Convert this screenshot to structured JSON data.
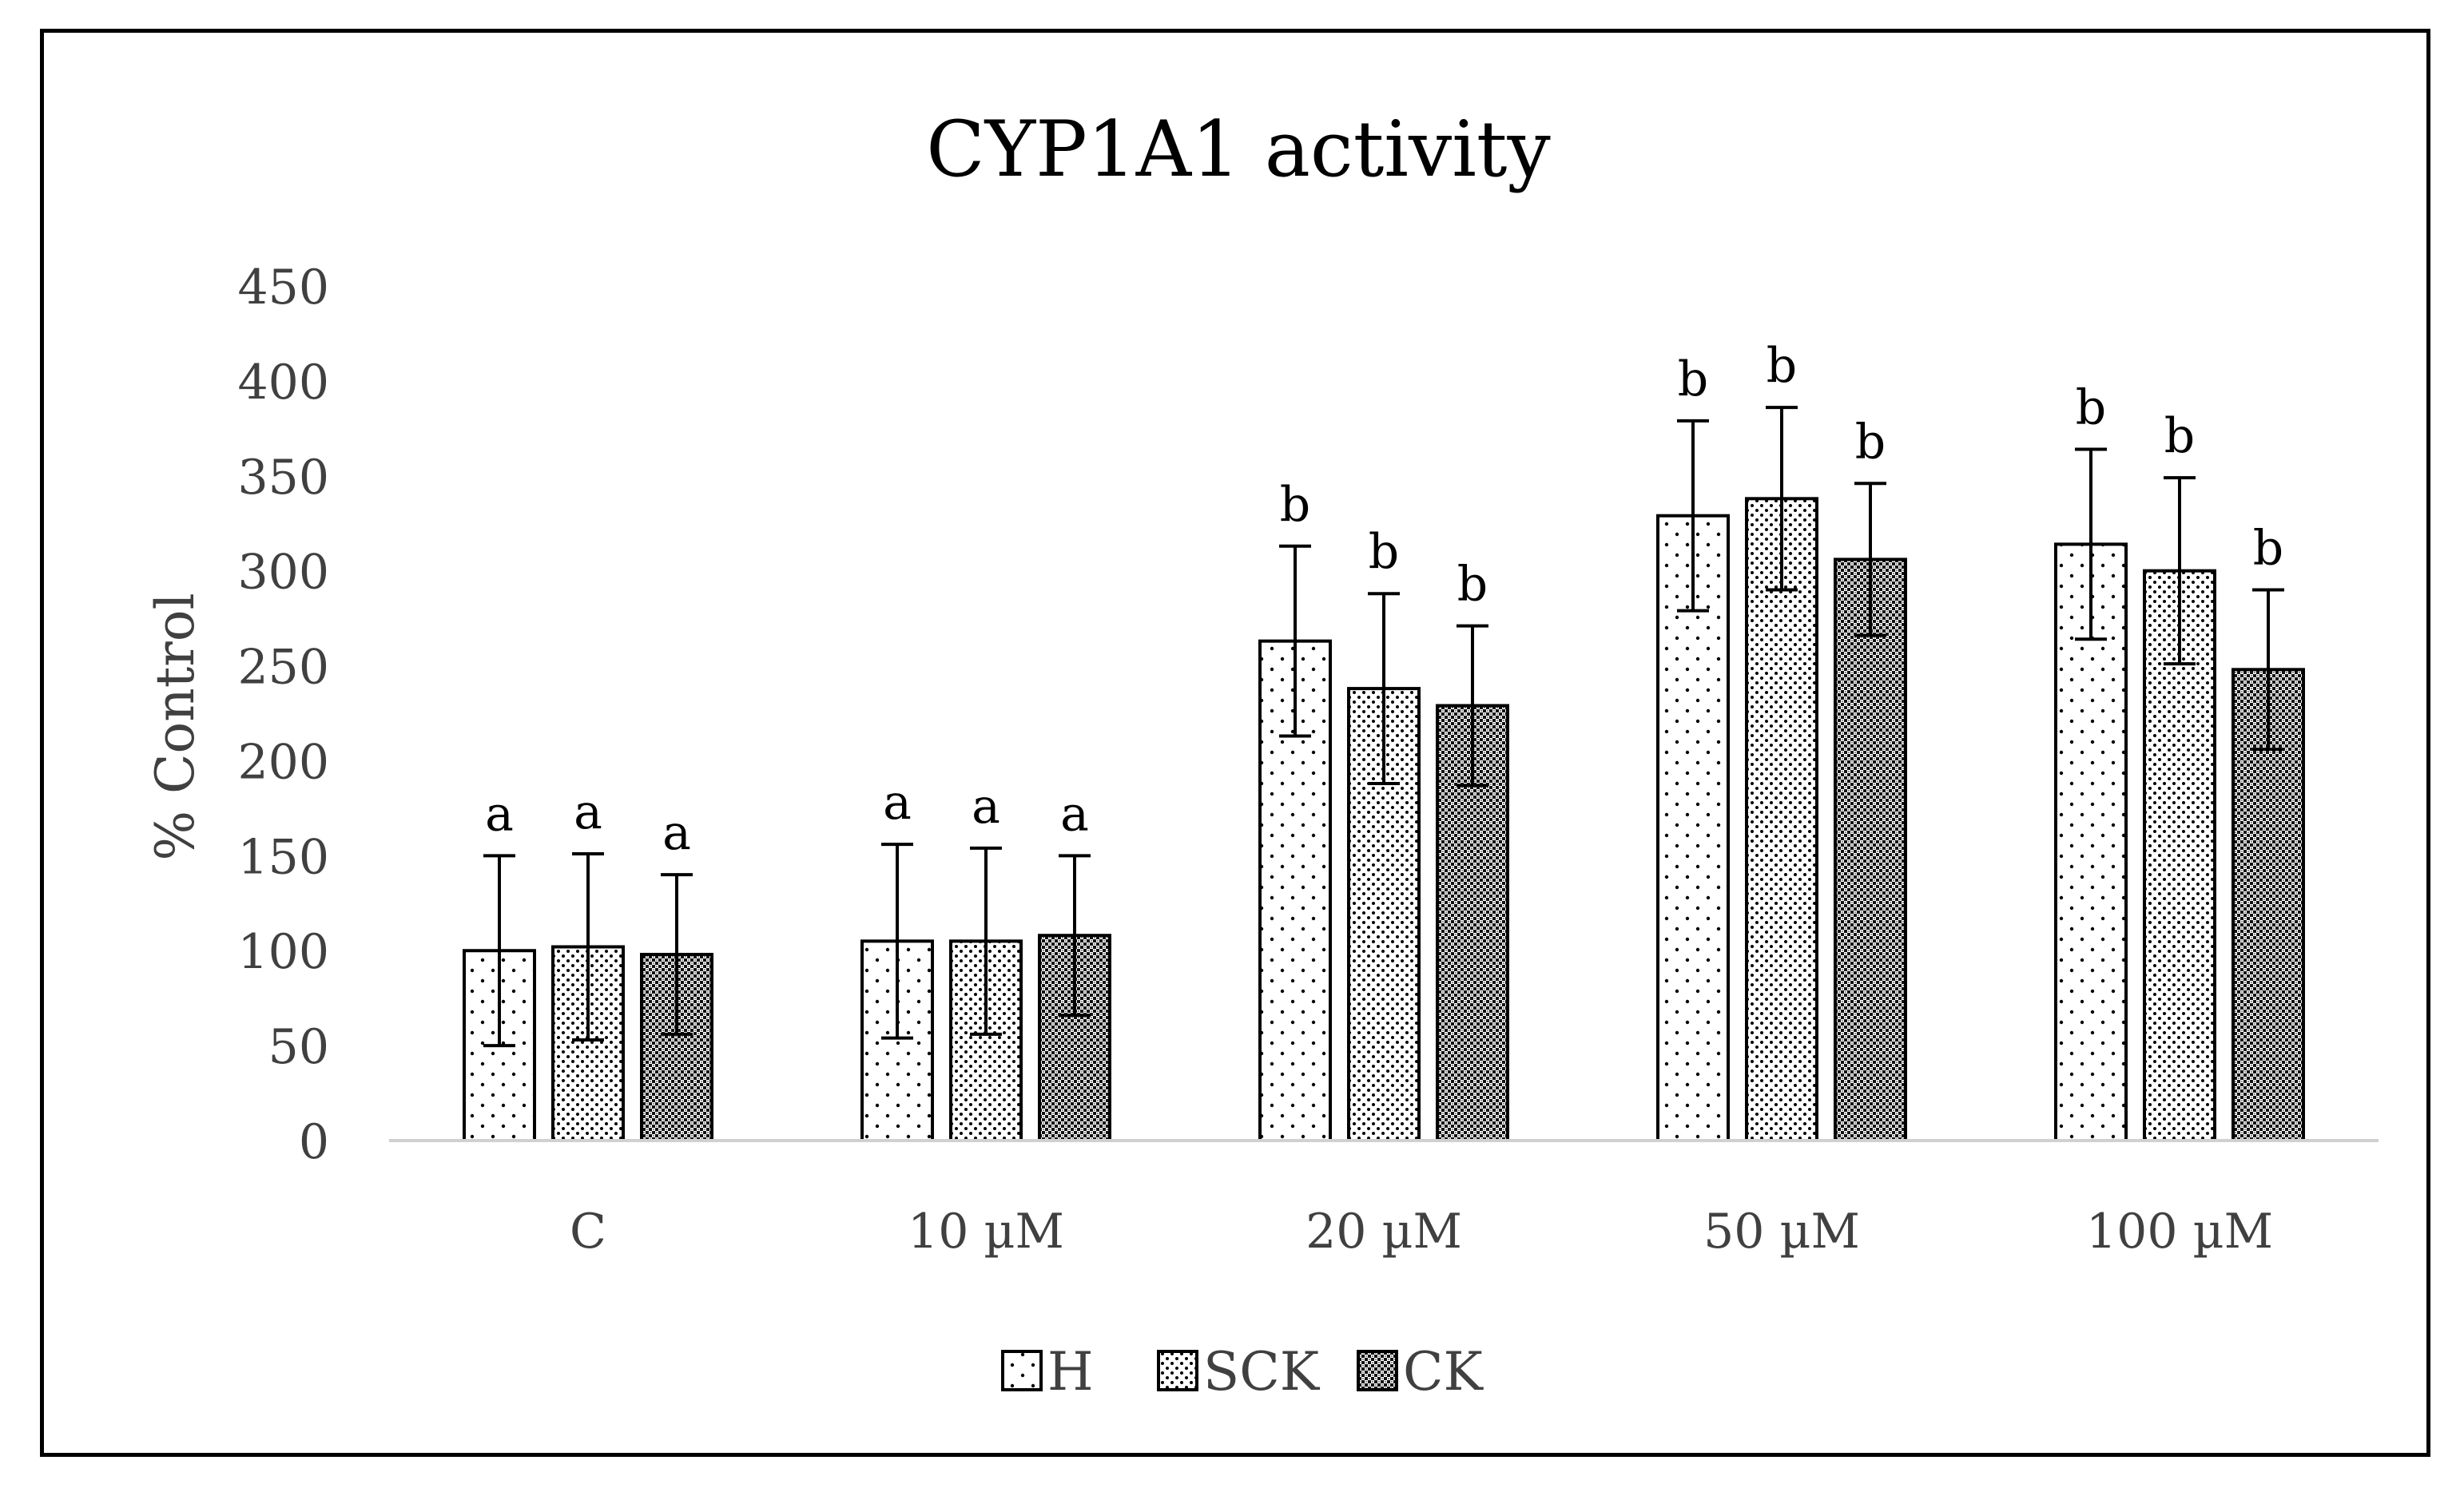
{
  "chart_data": {
    "type": "bar",
    "title": "CYP1A1 activity",
    "xlabel": "",
    "ylabel": "% Control",
    "ylim": [
      0,
      450
    ],
    "yticks": [
      0,
      50,
      100,
      150,
      200,
      250,
      300,
      350,
      400,
      450
    ],
    "ytick_labels": [
      "0",
      "50",
      "100",
      "150",
      "200",
      "250",
      "300",
      "350",
      "400",
      "450"
    ],
    "categories": [
      "C",
      "10 µM",
      "20 µM",
      "50 µM",
      "100 µM"
    ],
    "series": [
      {
        "name": "H",
        "pattern": "sparse-dots",
        "values": [
          100,
          105,
          263,
          329,
          314
        ],
        "errors": [
          50,
          51,
          50,
          50,
          50
        ],
        "significance": [
          "a",
          "a",
          "b",
          "b",
          "b"
        ]
      },
      {
        "name": "SCK",
        "pattern": "medium-dots",
        "values": [
          102,
          105,
          238,
          338,
          300
        ],
        "errors": [
          49,
          49,
          50,
          48,
          49
        ],
        "significance": [
          "a",
          "a",
          "b",
          "b",
          "b"
        ]
      },
      {
        "name": "CK",
        "pattern": "dense-checker",
        "values": [
          98,
          108,
          229,
          306,
          248
        ],
        "errors": [
          42,
          42,
          42,
          40,
          42
        ],
        "significance": [
          "a",
          "a",
          "b",
          "b",
          "b"
        ]
      }
    ],
    "legend": {
      "position": "bottom-center"
    },
    "grid": false
  }
}
